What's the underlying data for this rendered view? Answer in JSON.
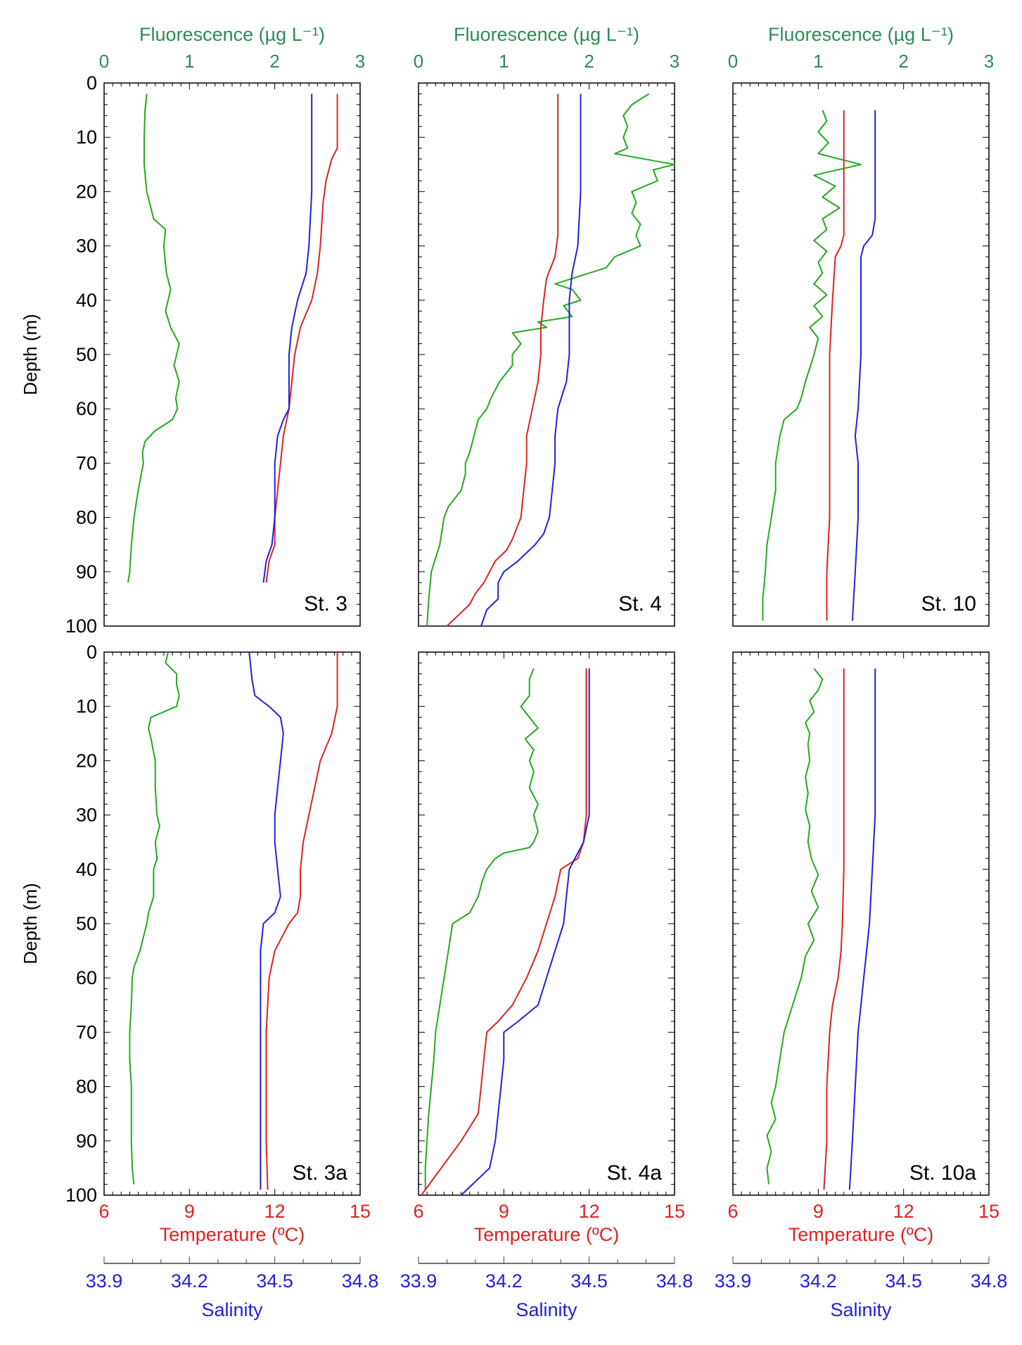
{
  "colors": {
    "fluorescence": "#22aa22",
    "fluorescence_label": "#2e8b57",
    "temperature": "#e02020",
    "salinity": "#2020e0",
    "axis": "#000000"
  },
  "chart_data": {
    "type": "line",
    "title": "",
    "axes": {
      "fluorescence": {
        "label": "Fluorescence (µg L⁻¹)",
        "range": [
          0,
          3
        ],
        "ticks": [
          "0",
          "1",
          "2",
          "3"
        ]
      },
      "temperature": {
        "label": "Temperature (ºC)",
        "range": [
          6,
          15
        ],
        "ticks": [
          "6",
          "9",
          "12",
          "15"
        ]
      },
      "salinity": {
        "label": "Salinity",
        "range": [
          33.9,
          34.8
        ],
        "ticks": [
          "33.9",
          "34.2",
          "34.5",
          "34.8"
        ]
      },
      "depth": {
        "label": "Depth (m)",
        "range": [
          0,
          100
        ],
        "ticks": [
          "0",
          "10",
          "20",
          "30",
          "40",
          "50",
          "60",
          "70",
          "80",
          "90",
          "100"
        ]
      }
    },
    "panels": [
      {
        "station": "St. 3",
        "series": [
          {
            "name": "Fluorescence",
            "depth": [
              2,
              5,
              10,
              15,
              20,
              25,
              27,
              30,
              35,
              38,
              42,
              45,
              48,
              52,
              55,
              58,
              60,
              62,
              64,
              66,
              68,
              70,
              75,
              80,
              85,
              90,
              92
            ],
            "values": [
              0.5,
              0.48,
              0.47,
              0.47,
              0.5,
              0.58,
              0.72,
              0.7,
              0.73,
              0.78,
              0.72,
              0.78,
              0.88,
              0.82,
              0.88,
              0.84,
              0.86,
              0.8,
              0.6,
              0.48,
              0.45,
              0.46,
              0.4,
              0.35,
              0.32,
              0.3,
              0.28
            ]
          },
          {
            "name": "Temperature",
            "depth": [
              2,
              5,
              10,
              12,
              14,
              18,
              22,
              30,
              35,
              40,
              45,
              50,
              55,
              60,
              65,
              70,
              75,
              80,
              85,
              88,
              92
            ],
            "values": [
              14.2,
              14.2,
              14.2,
              14.2,
              14.0,
              13.8,
              13.7,
              13.6,
              13.5,
              13.3,
              12.9,
              12.7,
              12.6,
              12.5,
              12.3,
              12.2,
              12.1,
              12.0,
              12.0,
              11.8,
              11.7
            ]
          },
          {
            "name": "Salinity",
            "depth": [
              2,
              10,
              20,
              30,
              35,
              40,
              45,
              50,
              55,
              60,
              62,
              65,
              70,
              80,
              85,
              88,
              92
            ],
            "values": [
              34.63,
              34.63,
              34.63,
              34.62,
              34.61,
              34.58,
              34.56,
              34.55,
              34.55,
              34.55,
              34.53,
              34.51,
              34.5,
              34.5,
              34.49,
              34.47,
              34.46
            ]
          }
        ]
      },
      {
        "station": "St. 4",
        "series": [
          {
            "name": "Fluorescence",
            "depth": [
              2,
              4,
              6,
              8,
              10,
              12,
              13,
              15,
              16,
              18,
              20,
              22,
              24,
              26,
              28,
              30,
              32,
              34,
              36,
              37,
              38,
              40,
              41,
              43,
              44,
              45,
              46,
              48,
              50,
              52,
              55,
              58,
              60,
              62,
              65,
              68,
              70,
              72,
              75,
              78,
              80,
              85,
              90,
              95,
              100
            ],
            "values": [
              2.7,
              2.5,
              2.4,
              2.45,
              2.4,
              2.45,
              2.3,
              3.0,
              2.75,
              2.8,
              2.5,
              2.55,
              2.5,
              2.6,
              2.55,
              2.6,
              2.3,
              2.2,
              1.8,
              1.6,
              1.8,
              1.9,
              1.7,
              1.8,
              1.4,
              1.5,
              1.1,
              1.2,
              1.1,
              1.1,
              0.95,
              0.85,
              0.8,
              0.7,
              0.65,
              0.6,
              0.55,
              0.55,
              0.5,
              0.35,
              0.3,
              0.25,
              0.15,
              0.12,
              0.1
            ]
          },
          {
            "name": "Temperature",
            "depth": [
              2,
              10,
              20,
              28,
              32,
              36,
              40,
              45,
              50,
              55,
              60,
              65,
              70,
              75,
              80,
              84,
              86,
              88,
              92,
              94,
              96,
              98,
              100
            ],
            "values": [
              10.9,
              10.9,
              10.9,
              10.9,
              10.8,
              10.5,
              10.4,
              10.3,
              10.3,
              10.2,
              10.0,
              9.8,
              9.8,
              9.7,
              9.6,
              9.3,
              9.1,
              8.7,
              8.3,
              8.0,
              7.8,
              7.4,
              7.0
            ]
          },
          {
            "name": "Salinity",
            "depth": [
              2,
              10,
              20,
              30,
              35,
              40,
              50,
              55,
              60,
              65,
              70,
              75,
              80,
              83,
              85,
              88,
              90,
              92,
              95,
              97,
              100
            ],
            "values": [
              34.47,
              34.47,
              34.47,
              34.46,
              34.44,
              34.43,
              34.43,
              34.42,
              34.39,
              34.38,
              34.38,
              34.37,
              34.36,
              34.34,
              34.31,
              34.25,
              34.2,
              34.18,
              34.18,
              34.14,
              34.12
            ]
          }
        ]
      },
      {
        "station": "St. 10",
        "series": [
          {
            "name": "Fluorescence",
            "depth": [
              5,
              7,
              9,
              11,
              13,
              15,
              17,
              19,
              21,
              23,
              25,
              27,
              29,
              31,
              33,
              35,
              37,
              39,
              41,
              43,
              45,
              47,
              50,
              55,
              58,
              60,
              62,
              65,
              70,
              75,
              80,
              85,
              90,
              95,
              99
            ],
            "values": [
              1.05,
              1.1,
              1.0,
              1.12,
              1.0,
              1.5,
              0.95,
              1.2,
              1.05,
              1.25,
              1.05,
              1.1,
              0.95,
              1.1,
              1.0,
              1.05,
              0.95,
              1.1,
              0.95,
              1.05,
              0.9,
              1.0,
              0.95,
              0.85,
              0.8,
              0.75,
              0.6,
              0.55,
              0.5,
              0.5,
              0.45,
              0.4,
              0.38,
              0.35,
              0.35
            ]
          },
          {
            "name": "Temperature",
            "depth": [
              5,
              10,
              20,
              28,
              30,
              32,
              40,
              50,
              60,
              70,
              80,
              90,
              99
            ],
            "values": [
              9.9,
              9.9,
              9.9,
              9.9,
              9.8,
              9.6,
              9.5,
              9.4,
              9.4,
              9.4,
              9.4,
              9.3,
              9.3
            ]
          },
          {
            "name": "Salinity",
            "depth": [
              5,
              10,
              20,
              25,
              28,
              30,
              32,
              40,
              50,
              60,
              65,
              70,
              75,
              80,
              90,
              99
            ],
            "values": [
              34.4,
              34.4,
              34.4,
              34.4,
              34.39,
              34.36,
              34.35,
              34.35,
              34.35,
              34.34,
              34.33,
              34.34,
              34.34,
              34.34,
              34.33,
              34.32
            ]
          }
        ]
      },
      {
        "station": "St. 3a",
        "series": [
          {
            "name": "Fluorescence",
            "depth": [
              0,
              2,
              4,
              6,
              8,
              10,
              12,
              14,
              16,
              20,
              25,
              30,
              32,
              35,
              38,
              40,
              42,
              45,
              48,
              50,
              55,
              58,
              60,
              65,
              70,
              75,
              80,
              85,
              90,
              95,
              98
            ],
            "values": [
              0.75,
              0.72,
              0.85,
              0.85,
              0.88,
              0.85,
              0.55,
              0.52,
              0.55,
              0.6,
              0.6,
              0.62,
              0.65,
              0.6,
              0.62,
              0.58,
              0.58,
              0.58,
              0.52,
              0.5,
              0.42,
              0.35,
              0.33,
              0.32,
              0.3,
              0.3,
              0.32,
              0.32,
              0.32,
              0.33,
              0.35
            ]
          },
          {
            "name": "Temperature",
            "depth": [
              0,
              5,
              10,
              15,
              20,
              25,
              30,
              35,
              40,
              45,
              48,
              50,
              55,
              60,
              70,
              80,
              90,
              99
            ],
            "values": [
              14.2,
              14.2,
              14.2,
              14.0,
              13.6,
              13.4,
              13.2,
              13.0,
              12.9,
              12.9,
              12.8,
              12.5,
              12.0,
              11.8,
              11.7,
              11.7,
              11.7,
              11.75
            ]
          },
          {
            "name": "Salinity",
            "depth": [
              0,
              5,
              8,
              10,
              12,
              15,
              20,
              25,
              30,
              35,
              40,
              45,
              48,
              50,
              55,
              60,
              70,
              80,
              90,
              99
            ],
            "values": [
              34.41,
              34.42,
              34.43,
              34.48,
              34.52,
              34.53,
              34.52,
              34.51,
              34.5,
              34.5,
              34.51,
              34.52,
              34.5,
              34.46,
              34.45,
              34.45,
              34.45,
              34.45,
              34.45,
              34.45
            ]
          }
        ]
      },
      {
        "station": "St. 4a",
        "series": [
          {
            "name": "Fluorescence",
            "depth": [
              3,
              5,
              8,
              10,
              12,
              14,
              16,
              18,
              20,
              22,
              25,
              28,
              30,
              33,
              35,
              36,
              37,
              38,
              40,
              42,
              45,
              48,
              50,
              55,
              60,
              65,
              70,
              75,
              80,
              85,
              90,
              95,
              99
            ],
            "values": [
              1.35,
              1.3,
              1.3,
              1.2,
              1.3,
              1.4,
              1.25,
              1.35,
              1.3,
              1.35,
              1.3,
              1.4,
              1.35,
              1.4,
              1.35,
              1.3,
              1.0,
              0.9,
              0.8,
              0.75,
              0.7,
              0.6,
              0.4,
              0.35,
              0.3,
              0.25,
              0.2,
              0.18,
              0.15,
              0.12,
              0.1,
              0.08,
              0.08
            ]
          },
          {
            "name": "Temperature",
            "depth": [
              3,
              10,
              20,
              30,
              35,
              38,
              40,
              45,
              50,
              55,
              60,
              65,
              68,
              70,
              75,
              80,
              85,
              90,
              95,
              100
            ],
            "values": [
              11.9,
              11.9,
              11.9,
              11.9,
              11.8,
              11.6,
              11.0,
              10.8,
              10.5,
              10.2,
              9.8,
              9.3,
              8.8,
              8.4,
              8.3,
              8.2,
              8.1,
              7.5,
              6.8,
              6.1
            ]
          },
          {
            "name": "Salinity",
            "depth": [
              3,
              10,
              20,
              30,
              35,
              38,
              40,
              45,
              50,
              55,
              60,
              65,
              68,
              70,
              75,
              80,
              85,
              90,
              95,
              100
            ],
            "values": [
              34.5,
              34.5,
              34.5,
              34.5,
              34.48,
              34.45,
              34.43,
              34.42,
              34.41,
              34.38,
              34.35,
              34.32,
              34.25,
              34.2,
              34.2,
              34.19,
              34.18,
              34.17,
              34.15,
              34.05
            ]
          }
        ]
      },
      {
        "station": "St. 10a",
        "series": [
          {
            "name": "Fluorescence",
            "depth": [
              3,
              5,
              7,
              9,
              11,
              13,
              15,
              17,
              20,
              23,
              26,
              29,
              32,
              35,
              38,
              41,
              44,
              47,
              50,
              53,
              56,
              60,
              65,
              70,
              75,
              80,
              83,
              86,
              89,
              92,
              95,
              98
            ],
            "values": [
              0.95,
              1.05,
              1.0,
              0.9,
              0.95,
              0.85,
              0.9,
              0.88,
              0.9,
              0.85,
              0.88,
              0.85,
              0.9,
              0.88,
              0.92,
              1.0,
              0.92,
              1.0,
              0.88,
              0.95,
              0.85,
              0.8,
              0.7,
              0.6,
              0.55,
              0.5,
              0.45,
              0.5,
              0.4,
              0.45,
              0.4,
              0.42
            ]
          },
          {
            "name": "Temperature",
            "depth": [
              3,
              10,
              20,
              30,
              40,
              50,
              55,
              60,
              65,
              70,
              80,
              90,
              99
            ],
            "values": [
              9.9,
              9.9,
              9.9,
              9.9,
              9.9,
              9.85,
              9.8,
              9.7,
              9.5,
              9.4,
              9.3,
              9.3,
              9.2
            ]
          },
          {
            "name": "Salinity",
            "depth": [
              3,
              10,
              20,
              30,
              40,
              50,
              55,
              60,
              65,
              70,
              80,
              90,
              99
            ],
            "values": [
              34.4,
              34.4,
              34.4,
              34.4,
              34.39,
              34.38,
              34.37,
              34.36,
              34.35,
              34.34,
              34.33,
              34.32,
              34.31
            ]
          }
        ]
      }
    ]
  }
}
